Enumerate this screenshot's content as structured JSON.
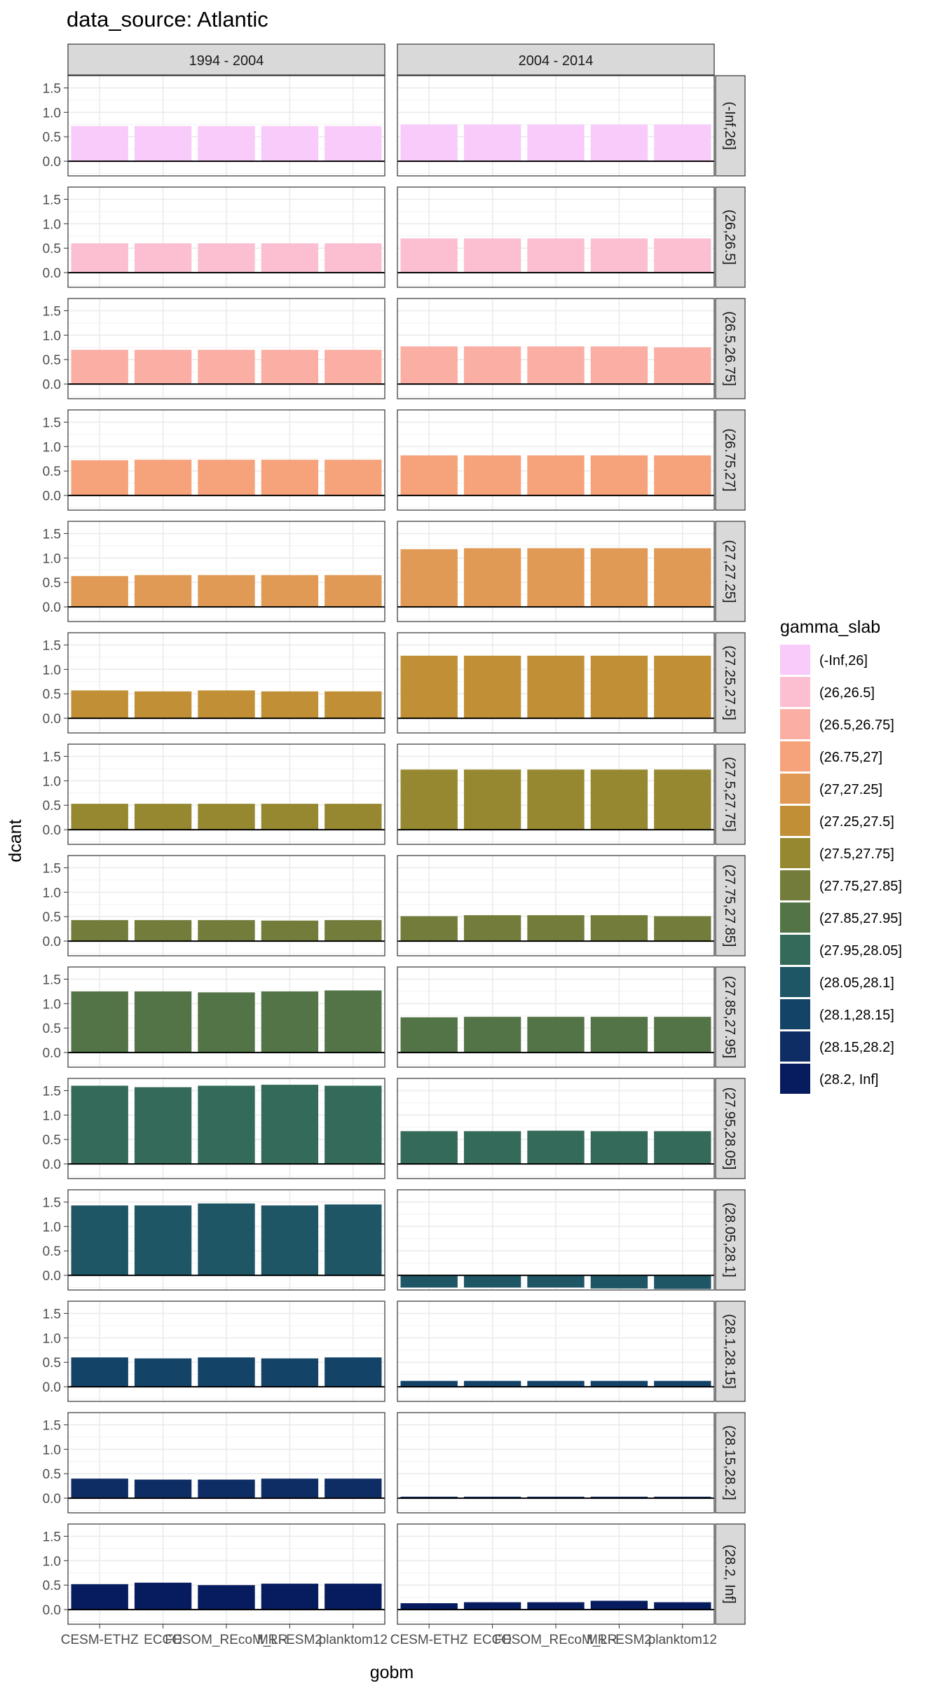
{
  "chart_data": {
    "type": "bar",
    "title": "data_source: Atlantic",
    "xlabel": "gobm",
    "ylabel": "dcant",
    "ylim": [
      -0.3,
      1.75
    ],
    "yticks": [
      0.0,
      0.5,
      1.0,
      1.5
    ],
    "ytick_labels": [
      "0.0",
      "0.5",
      "1.0",
      "1.5"
    ],
    "grid": true,
    "legend_position": "right",
    "legend_title": "gamma_slab",
    "categories": [
      "CESM-ETHZ",
      "ECCO",
      "FESOM_REcoM_LR",
      "MRI-ESM2",
      "planktom12"
    ],
    "xtick_labels": [
      "CESM-ETHZ",
      "ECCO",
      "FESOM_REcoM_LR",
      "MRI-ESM2",
      "planktom12"
    ],
    "col_facets": [
      "1994 - 2004",
      "2004 - 2014"
    ],
    "row_facets": [
      "(-Inf,26]",
      "(26,26.5]",
      "(26.5,26.75]",
      "(26.75,27]",
      "(27,27.25]",
      "(27.25,27.5]",
      "(27.5,27.75]",
      "(27.75,27.85]",
      "(27.85,27.95]",
      "(27.95,28.05]",
      "(28.05,28.1]",
      "(28.1,28.15]",
      "(28.15,28.2]",
      "(28.2, Inf]"
    ],
    "colors": [
      "#f9cbfa",
      "#fbbfd1",
      "#fbaea3",
      "#f6a27a",
      "#e19a55",
      "#c19036",
      "#968830",
      "#737c3a",
      "#537447",
      "#346a59",
      "#1f5665",
      "#144368",
      "#0e2d65",
      "#061c5f"
    ],
    "series": [
      {
        "name": "(-Inf,26]",
        "values": [
          [
            0.72,
            0.72,
            0.72,
            0.72,
            0.72
          ],
          [
            0.75,
            0.75,
            0.75,
            0.75,
            0.75
          ]
        ]
      },
      {
        "name": "(26,26.5]",
        "values": [
          [
            0.6,
            0.6,
            0.6,
            0.6,
            0.6
          ],
          [
            0.7,
            0.7,
            0.7,
            0.7,
            0.7
          ]
        ]
      },
      {
        "name": "(26.5,26.75]",
        "values": [
          [
            0.7,
            0.7,
            0.7,
            0.7,
            0.7
          ],
          [
            0.77,
            0.77,
            0.77,
            0.77,
            0.75
          ]
        ]
      },
      {
        "name": "(26.75,27]",
        "values": [
          [
            0.72,
            0.73,
            0.73,
            0.73,
            0.73
          ],
          [
            0.82,
            0.82,
            0.82,
            0.82,
            0.82
          ]
        ]
      },
      {
        "name": "(27,27.25]",
        "values": [
          [
            0.63,
            0.65,
            0.65,
            0.65,
            0.65
          ],
          [
            1.18,
            1.2,
            1.2,
            1.2,
            1.2
          ]
        ]
      },
      {
        "name": "(27.25,27.5]",
        "values": [
          [
            0.57,
            0.55,
            0.57,
            0.55,
            0.55
          ],
          [
            1.28,
            1.28,
            1.28,
            1.28,
            1.28
          ]
        ]
      },
      {
        "name": "(27.5,27.75]",
        "values": [
          [
            0.53,
            0.53,
            0.53,
            0.53,
            0.53
          ],
          [
            1.23,
            1.23,
            1.23,
            1.23,
            1.23
          ]
        ]
      },
      {
        "name": "(27.75,27.85]",
        "values": [
          [
            0.43,
            0.43,
            0.43,
            0.42,
            0.43
          ],
          [
            0.51,
            0.53,
            0.53,
            0.53,
            0.51
          ]
        ]
      },
      {
        "name": "(27.85,27.95]",
        "values": [
          [
            1.25,
            1.25,
            1.23,
            1.25,
            1.27
          ],
          [
            0.72,
            0.73,
            0.73,
            0.73,
            0.73
          ]
        ]
      },
      {
        "name": "(27.95,28.05]",
        "values": [
          [
            1.6,
            1.57,
            1.6,
            1.62,
            1.6
          ],
          [
            0.67,
            0.67,
            0.68,
            0.67,
            0.67
          ]
        ]
      },
      {
        "name": "(28.05,28.1]",
        "values": [
          [
            1.43,
            1.43,
            1.47,
            1.43,
            1.45
          ],
          [
            -0.25,
            -0.25,
            -0.25,
            -0.27,
            -0.28
          ]
        ]
      },
      {
        "name": "(28.1,28.15]",
        "values": [
          [
            0.6,
            0.58,
            0.6,
            0.58,
            0.6
          ],
          [
            0.12,
            0.12,
            0.12,
            0.12,
            0.12
          ]
        ]
      },
      {
        "name": "(28.15,28.2]",
        "values": [
          [
            0.4,
            0.38,
            0.38,
            0.4,
            0.4
          ],
          [
            0.03,
            0.03,
            0.03,
            0.03,
            0.03
          ]
        ]
      },
      {
        "name": "(28.2, Inf]",
        "values": [
          [
            0.52,
            0.55,
            0.5,
            0.53,
            0.53
          ],
          [
            0.13,
            0.15,
            0.15,
            0.18,
            0.15
          ]
        ]
      }
    ]
  }
}
